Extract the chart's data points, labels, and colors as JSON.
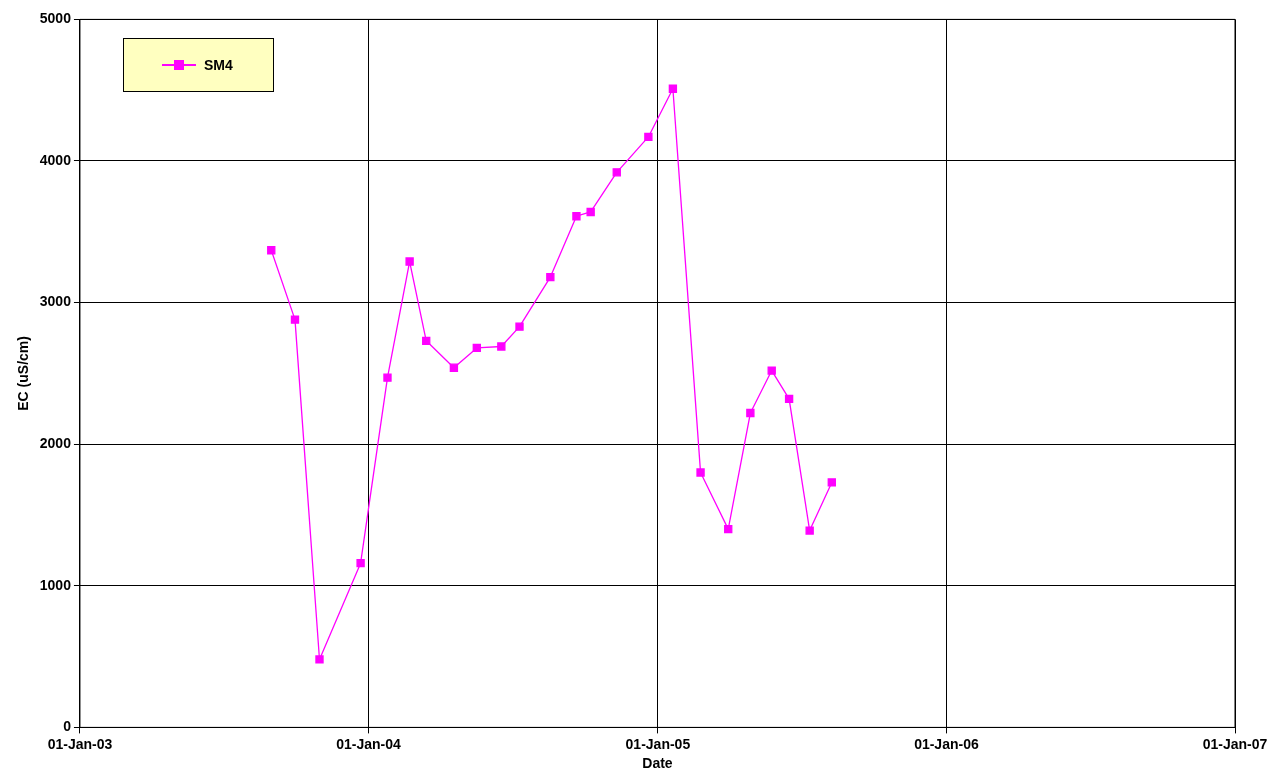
{
  "chart_data": {
    "type": "line",
    "xlabel": "Date",
    "ylabel": "EC (uS/cm)",
    "xlim": [
      "2003-01-01",
      "2007-01-01"
    ],
    "xticks": [
      {
        "value": "2003-01-01",
        "label": "01-Jan-03"
      },
      {
        "value": "2004-01-01",
        "label": "01-Jan-04"
      },
      {
        "value": "2005-01-01",
        "label": "01-Jan-05"
      },
      {
        "value": "2006-01-01",
        "label": "01-Jan-06"
      },
      {
        "value": "2007-01-01",
        "label": "01-Jan-07"
      }
    ],
    "ylim": [
      0,
      5000
    ],
    "yticks": [
      0,
      1000,
      2000,
      3000,
      4000,
      5000
    ],
    "x": [
      "2003-08-31",
      "2003-09-30",
      "2003-10-31",
      "2003-12-22",
      "2004-01-25",
      "2004-02-22",
      "2004-03-14",
      "2004-04-18",
      "2004-05-17",
      "2004-06-17",
      "2004-07-10",
      "2004-08-18",
      "2004-09-20",
      "2004-10-08",
      "2004-11-10",
      "2004-12-20",
      "2005-01-20",
      "2005-02-24",
      "2005-03-31",
      "2005-04-28",
      "2005-05-25",
      "2005-06-16",
      "2005-07-12",
      "2005-08-09"
    ],
    "series": [
      {
        "name": "SM4",
        "color": "#ff00ff",
        "values": [
          3370,
          2880,
          480,
          1160,
          2470,
          3290,
          2730,
          2540,
          2680,
          2690,
          2830,
          3180,
          3610,
          3640,
          3920,
          4170,
          4510,
          1800,
          1400,
          2220,
          2520,
          2320,
          1390,
          1730
        ]
      }
    ],
    "grid": true,
    "legend": "top left",
    "marker": "square",
    "line_style": "solid"
  }
}
